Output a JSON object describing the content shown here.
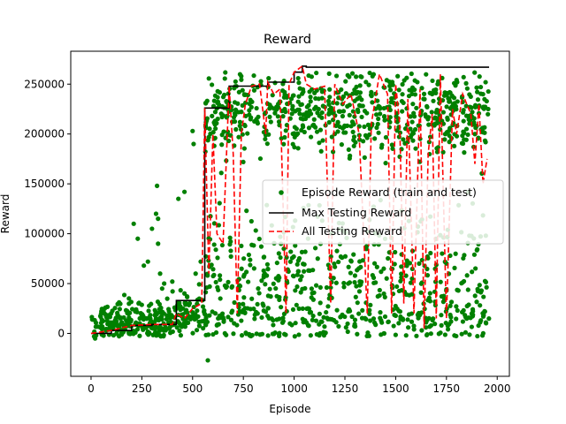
{
  "chart_data": {
    "type": "scatter",
    "title": "Reward",
    "xlabel": "Episode",
    "ylabel": "Reward",
    "xlim": [
      -100,
      2060
    ],
    "ylim": [
      -43000,
      283000
    ],
    "xticks": [
      0,
      250,
      500,
      750,
      1000,
      1250,
      1500,
      1750,
      2000
    ],
    "yticks": [
      0,
      50000,
      100000,
      150000,
      200000,
      250000
    ],
    "grid": false,
    "legend_position": "center-right",
    "colors": {
      "episode": "#008000",
      "max": "#000000",
      "all": "#ff0000"
    },
    "series": [
      {
        "name": "Episode Reward (train and test)",
        "kind": "scatter",
        "clusters": [
          {
            "x": [
              0,
              400
            ],
            "y_center": 8000,
            "y_spread": 7000,
            "n": 150
          },
          {
            "x": [
              50,
              500
            ],
            "y_center": 20000,
            "y_spread": 9000,
            "n": 90
          },
          {
            "x": [
              400,
              560
            ],
            "y_center": 20000,
            "y_spread": 12000,
            "n": 60
          },
          {
            "x": [
              560,
              1960
            ],
            "y_center": 222000,
            "y_spread": 20000,
            "n": 650
          },
          {
            "x": [
              560,
              1960
            ],
            "y_center": 50000,
            "y_spread": 38000,
            "n": 520
          },
          {
            "x": [
              560,
              1960
            ],
            "y_center": 15000,
            "y_spread": 5000,
            "n": 120
          }
        ],
        "points": [
          {
            "x": 210,
            "y": 110000
          },
          {
            "x": 230,
            "y": 95000
          },
          {
            "x": 260,
            "y": 68000
          },
          {
            "x": 280,
            "y": 72000
          },
          {
            "x": 300,
            "y": 105000
          },
          {
            "x": 320,
            "y": 120000
          },
          {
            "x": 325,
            "y": 148000
          },
          {
            "x": 330,
            "y": 115000
          },
          {
            "x": 330,
            "y": 90000
          },
          {
            "x": 340,
            "y": 60000
          },
          {
            "x": 350,
            "y": 45000
          },
          {
            "x": 360,
            "y": 50000
          },
          {
            "x": 400,
            "y": 52000
          },
          {
            "x": 430,
            "y": 135000
          },
          {
            "x": 460,
            "y": 142000
          },
          {
            "x": 500,
            "y": 203000
          },
          {
            "x": 505,
            "y": 190000
          },
          {
            "x": 515,
            "y": 60000
          },
          {
            "x": 540,
            "y": 72000
          },
          {
            "x": 575,
            "y": -27000
          },
          {
            "x": 20,
            "y": -5000
          },
          {
            "x": 15,
            "y": -3000
          },
          {
            "x": 25,
            "y": -2000
          }
        ]
      },
      {
        "name": "Max Testing Reward",
        "kind": "step",
        "x": [
          0,
          100,
          200,
          300,
          400,
          420,
          500,
          545,
          560,
          640,
          680,
          790,
          870,
          960,
          1000,
          1040,
          1060,
          1960
        ],
        "y": [
          0,
          3000,
          8000,
          9000,
          9000,
          33000,
          33000,
          33000,
          226000,
          226000,
          248000,
          248000,
          252000,
          252000,
          262000,
          268000,
          267000,
          267000
        ]
      },
      {
        "name": "All Testing Reward",
        "kind": "line",
        "x": [
          0,
          100,
          200,
          300,
          400,
          420,
          460,
          500,
          545,
          560,
          580,
          600,
          620,
          650,
          680,
          700,
          720,
          740,
          760,
          790,
          830,
          860,
          870,
          900,
          930,
          960,
          975,
          1000,
          1040,
          1060,
          1100,
          1150,
          1180,
          1200,
          1240,
          1280,
          1320,
          1360,
          1380,
          1420,
          1460,
          1480,
          1500,
          1520,
          1540,
          1560,
          1590,
          1620,
          1640,
          1660,
          1680,
          1700,
          1720,
          1750,
          1780,
          1800,
          1830,
          1870,
          1890,
          1910,
          1930,
          1950
        ],
        "y": [
          0,
          3000,
          8000,
          9000,
          9000,
          20000,
          15000,
          25000,
          30000,
          226000,
          60000,
          200000,
          100000,
          90000,
          248000,
          180000,
          20000,
          200000,
          230000,
          248000,
          250000,
          200000,
          252000,
          240000,
          245000,
          20000,
          250000,
          262000,
          268000,
          250000,
          245000,
          248000,
          30000,
          250000,
          230000,
          240000,
          200000,
          20000,
          210000,
          260000,
          240000,
          20000,
          250000,
          210000,
          30000,
          235000,
          20000,
          245000,
          5000,
          180000,
          220000,
          15000,
          260000,
          15000,
          225000,
          200000,
          240000,
          220000,
          170000,
          230000,
          150000,
          175000
        ]
      }
    ]
  }
}
